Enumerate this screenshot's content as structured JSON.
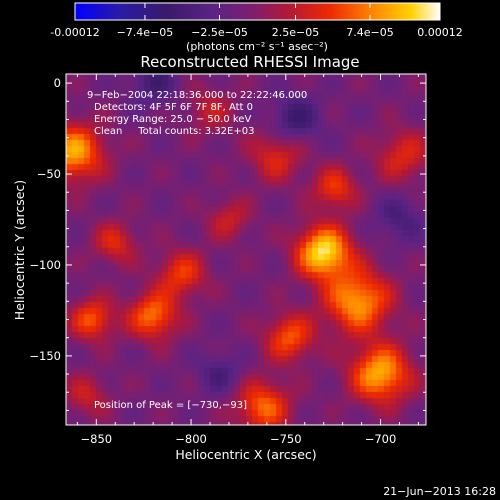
{
  "chart_data": {
    "type": "heatmap",
    "title": "Reconstructed RHESSI Image",
    "xlabel": "Heliocentric X (arcsec)",
    "ylabel": "Heliocentric Y (arcsec)",
    "xlim": [
      -866,
      -676
    ],
    "ylim": [
      -188,
      5
    ],
    "x_ticks": [
      -850,
      -800,
      -750,
      -700
    ],
    "y_ticks": [
      0,
      -50,
      -100,
      -150
    ],
    "colorbar": {
      "range": [
        -0.00012,
        0.00012
      ],
      "tick_values": [
        -0.00012,
        -7.4e-05,
        -2.5e-05,
        2.5e-05,
        7.4e-05,
        0.00012
      ],
      "tick_labels": [
        "-0.00012",
        "−7.4e−05",
        "−2.5e−05",
        "2.5e−05",
        "7.4e−05",
        "0.00012"
      ],
      "unit_label": "(photons cm⁻² s⁻¹ asec⁻²)"
    },
    "annotations": [
      "9−Feb−2004 22:18:36.000 to 22:22:46.000",
      "Detectors: 4F 5F 6F 7F 8F, Att 0",
      "Energy Range: 25.0 − 50.0 keV",
      "Clean     Total counts: 3.32E+03"
    ],
    "peak_label": "Position of Peak = [−730,−93]",
    "peak": [
      -730,
      -93
    ],
    "sources": [
      {
        "x": -730,
        "y": -93,
        "value": 0.00012,
        "sigma": 10
      },
      {
        "x": -712,
        "y": -120,
        "value": 9.5e-05,
        "sigma": 12
      },
      {
        "x": -700,
        "y": -160,
        "value": 0.0001,
        "sigma": 11
      },
      {
        "x": -748,
        "y": -140,
        "value": 7e-05,
        "sigma": 9
      },
      {
        "x": -724,
        "y": -58,
        "value": 6e-05,
        "sigma": 8
      },
      {
        "x": -762,
        "y": -178,
        "value": 7.5e-05,
        "sigma": 10
      },
      {
        "x": -820,
        "y": -128,
        "value": 8e-05,
        "sigma": 9
      },
      {
        "x": -862,
        "y": -38,
        "value": 9.5e-05,
        "sigma": 11
      },
      {
        "x": -852,
        "y": -130,
        "value": 7e-05,
        "sigma": 8
      },
      {
        "x": -805,
        "y": -105,
        "value": 6e-05,
        "sigma": 9
      },
      {
        "x": -840,
        "y": -88,
        "value": 5e-05,
        "sigma": 8
      },
      {
        "x": -755,
        "y": -40,
        "value": 5e-05,
        "sigma": 10
      },
      {
        "x": -790,
        "y": -15,
        "value": 3.5e-05,
        "sigma": 9
      },
      {
        "x": -688,
        "y": -40,
        "value": 5e-05,
        "sigma": 10
      },
      {
        "x": -855,
        "y": -172,
        "value": 4e-05,
        "sigma": 8
      },
      {
        "x": -780,
        "y": -75,
        "value": 4e-05,
        "sigma": 8
      },
      {
        "x": -820,
        "y": 0,
        "value": -4e-05,
        "sigma": 9
      },
      {
        "x": -745,
        "y": -20,
        "value": -5e-05,
        "sigma": 9
      },
      {
        "x": -785,
        "y": -160,
        "value": -3.5e-05,
        "sigma": 8
      },
      {
        "x": -690,
        "y": -75,
        "value": -3.5e-05,
        "sigma": 9
      }
    ],
    "background_level": -1e-05
  },
  "footer": {
    "date_stamp": "21−Jun−2013 16:28"
  },
  "colors": {
    "background": "#000000",
    "text": "#ffffff"
  }
}
